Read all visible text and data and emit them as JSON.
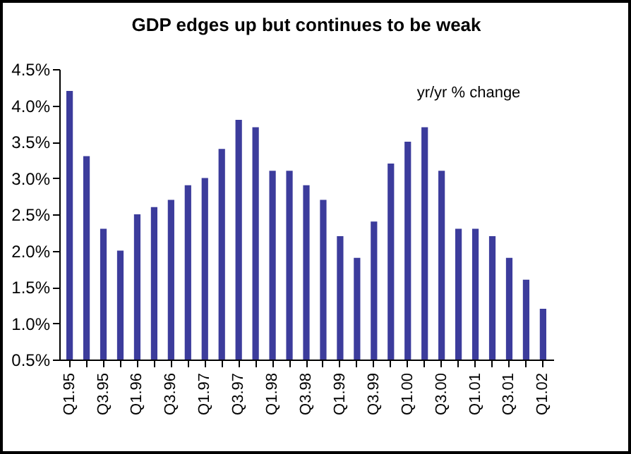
{
  "chart_data": {
    "type": "bar",
    "title": "GDP edges up but continues to be weak",
    "annotations": [
      "yr/yr % change"
    ],
    "categories": [
      "Q1.95",
      null,
      "Q3.95",
      null,
      "Q1.96",
      null,
      "Q3.96",
      null,
      "Q1.97",
      null,
      "Q3.97",
      null,
      "Q1.98",
      null,
      "Q3.98",
      null,
      "Q1.99",
      null,
      "Q3.99",
      null,
      "Q1.00",
      null,
      "Q3.00",
      null,
      "Q1.01",
      null,
      "Q3.01",
      null,
      "Q1.02"
    ],
    "values": [
      4.2,
      3.3,
      2.3,
      2.0,
      2.5,
      2.6,
      2.7,
      2.9,
      3.0,
      3.4,
      3.8,
      3.7,
      3.1,
      3.1,
      2.9,
      2.7,
      2.2,
      1.9,
      2.4,
      3.2,
      3.5,
      3.7,
      3.1,
      2.3,
      2.3,
      2.2,
      1.9,
      1.6,
      1.2
    ],
    "color": "#3c3c9c",
    "ylim": [
      0.5,
      4.5
    ],
    "yticks": [
      {
        "value": 0.5,
        "label": "0.5%"
      },
      {
        "value": 1.0,
        "label": "1.0%"
      },
      {
        "value": 1.5,
        "label": "1.5%"
      },
      {
        "value": 2.0,
        "label": "2.0%"
      },
      {
        "value": 2.5,
        "label": "2.5%"
      },
      {
        "value": 3.0,
        "label": "3.0%"
      },
      {
        "value": 3.5,
        "label": "3.5%"
      },
      {
        "value": 4.0,
        "label": "4.0%"
      },
      {
        "value": 4.5,
        "label": "4.5%"
      }
    ],
    "grid": false
  }
}
